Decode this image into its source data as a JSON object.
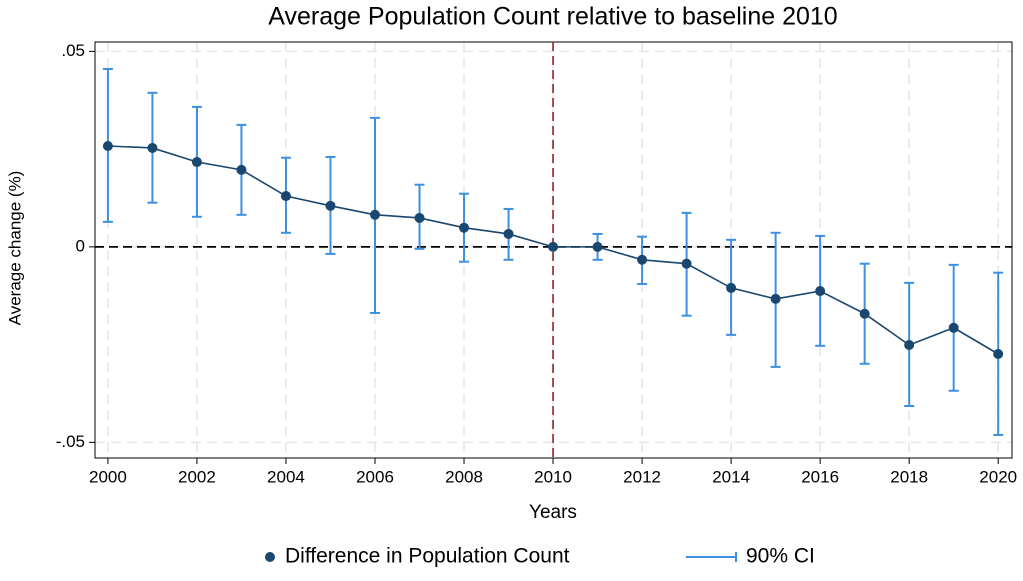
{
  "chart_data": {
    "type": "line",
    "title": "Average Population Count relative to baseline 2010",
    "x_label": "Years",
    "y_label": "Average change (%)",
    "x": [
      2000,
      2001,
      2002,
      2003,
      2004,
      2005,
      2006,
      2007,
      2008,
      2009,
      2010,
      2011,
      2012,
      2013,
      2014,
      2015,
      2016,
      2017,
      2018,
      2019,
      2020
    ],
    "series": [
      {
        "name": "Difference in Population Count",
        "color": "#1a476f",
        "values": [
          0.0258,
          0.0253,
          0.0217,
          0.0197,
          0.013,
          0.0105,
          0.0082,
          0.0074,
          0.0049,
          0.0033,
          0,
          0,
          -0.0033,
          -0.0043,
          -0.0105,
          -0.0133,
          -0.0113,
          -0.0171,
          -0.0251,
          -0.0207,
          -0.0274
        ]
      },
      {
        "name": "90% CI",
        "color": "#3d8fe0",
        "high": [
          0.0455,
          0.0394,
          0.0358,
          0.0312,
          0.0228,
          0.023,
          0.033,
          0.0159,
          0.0136,
          0.0097,
          0,
          0.0033,
          0.0026,
          0.0087,
          0.0018,
          0.0036,
          0.0028,
          -0.0043,
          -0.0092,
          -0.0046,
          -0.0066
        ],
        "low": [
          0.0064,
          0.0113,
          0.0077,
          0.0082,
          0.0036,
          -0.0018,
          -0.0169,
          -0.0005,
          -0.0038,
          -0.0033,
          0,
          -0.0033,
          -0.0095,
          -0.0176,
          -0.0225,
          -0.0307,
          -0.0253,
          -0.0299,
          -0.0407,
          -0.0368,
          -0.0481
        ]
      }
    ],
    "xlim": [
      1999.71,
      2020.31
    ],
    "ylim": [
      -0.054,
      0.0524
    ],
    "xticks": [
      2000,
      2002,
      2004,
      2006,
      2008,
      2010,
      2012,
      2014,
      2016,
      2018,
      2020
    ],
    "yticks": [
      {
        "value": 0.05,
        "label": ".05"
      },
      0,
      {
        "value": -0.05,
        "label": "-.05"
      }
    ],
    "xline": 2010,
    "xline_color": "#a0393b",
    "yline": 0,
    "yline_color": "#000000",
    "grid": true,
    "legend": "bottom"
  }
}
